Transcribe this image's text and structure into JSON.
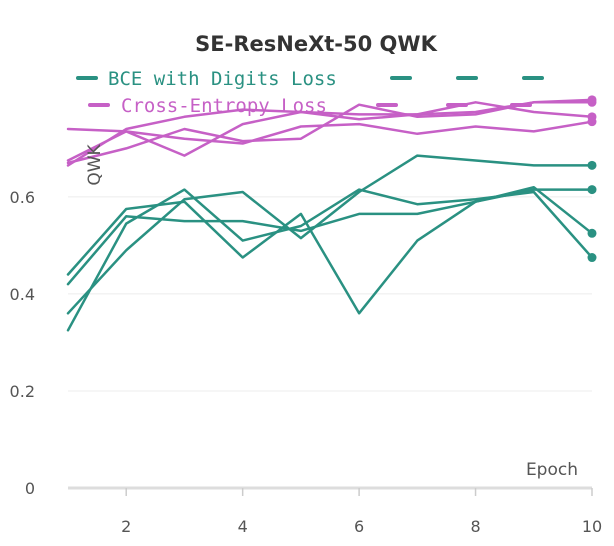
{
  "chart_data": {
    "type": "line",
    "title": "SE-ResNeXt-50 QWK",
    "xlabel": "Epoch",
    "ylabel": "QWK",
    "x": [
      1,
      2,
      3,
      4,
      5,
      6,
      7,
      8,
      9,
      10
    ],
    "xticks": [
      "2",
      "4",
      "6",
      "8",
      "10"
    ],
    "xtick_values": [
      2,
      4,
      6,
      8,
      10
    ],
    "yticks": [
      "0",
      "0.2",
      "0.4",
      "0.6"
    ],
    "ytick_values": [
      0,
      0.2,
      0.4,
      0.6
    ],
    "xlim": [
      1,
      10
    ],
    "ylim": [
      0,
      0.81
    ],
    "grid": "horizontal",
    "legend_position": "top-left",
    "legend": [
      {
        "label": "BCE with Digits Loss",
        "color": "#2a9182"
      },
      {
        "label": "Cross-Entropy Loss",
        "color": "#c660c6"
      }
    ],
    "series": [
      {
        "group": 0,
        "color": "#2a9182",
        "values": [
          0.42,
          0.56,
          0.55,
          0.55,
          0.53,
          0.565,
          0.565,
          0.59,
          0.615,
          0.615
        ]
      },
      {
        "group": 0,
        "color": "#2a9182",
        "values": [
          0.36,
          0.49,
          0.595,
          0.61,
          0.515,
          0.61,
          0.685,
          0.675,
          0.665,
          0.665
        ]
      },
      {
        "group": 0,
        "color": "#2a9182",
        "values": [
          0.325,
          0.545,
          0.615,
          0.51,
          0.54,
          0.615,
          0.585,
          0.595,
          0.61,
          0.475
        ]
      },
      {
        "group": 0,
        "color": "#2a9182",
        "values": [
          0.44,
          0.575,
          0.59,
          0.475,
          0.565,
          0.36,
          0.51,
          0.59,
          0.62,
          0.525
        ]
      },
      {
        "group": 1,
        "color": "#c660c6",
        "values": [
          0.665,
          0.74,
          0.765,
          0.78,
          0.775,
          0.77,
          0.77,
          0.775,
          0.795,
          0.795
        ]
      },
      {
        "group": 1,
        "color": "#c660c6",
        "values": [
          0.675,
          0.735,
          0.685,
          0.75,
          0.775,
          0.76,
          0.77,
          0.795,
          0.775,
          0.765
        ]
      },
      {
        "group": 1,
        "color": "#c660c6",
        "values": [
          0.67,
          0.7,
          0.74,
          0.715,
          0.72,
          0.79,
          0.765,
          0.77,
          0.795,
          0.8
        ]
      },
      {
        "group": 1,
        "color": "#c660c6",
        "values": [
          0.74,
          0.735,
          0.72,
          0.71,
          0.745,
          0.75,
          0.73,
          0.745,
          0.735,
          0.755
        ]
      }
    ]
  }
}
